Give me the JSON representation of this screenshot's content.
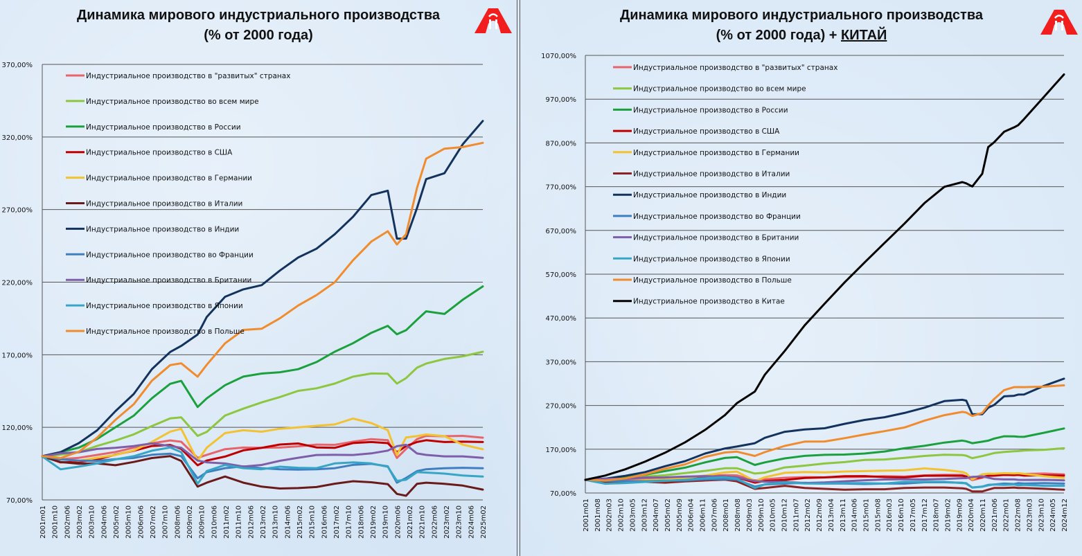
{
  "chart_data": [
    {
      "type": "line",
      "title": "Динамика мирового индустриального производства",
      "subtitle": "(% от 2000 года)",
      "subtitle_emph": "",
      "xlabel": "",
      "ylabel": "",
      "ylim": [
        70,
        370
      ],
      "yticks": [
        "370,00%",
        "320,00%",
        "270,00%",
        "220,00%",
        "170,00%",
        "120,00%",
        "70,00%"
      ],
      "ytick_values": [
        370,
        320,
        270,
        220,
        170,
        120,
        70
      ],
      "grid": true,
      "legend_position": "top-left",
      "xticks": [
        "2001m01",
        "2001m10",
        "2002m06",
        "2003m02",
        "2003m10",
        "2004m06",
        "2005m02",
        "2005m10",
        "2006m06",
        "2007m02",
        "2007m10",
        "2008m06",
        "2009m02",
        "2009m10",
        "2010m06",
        "2011m02",
        "2011m10",
        "2012m06",
        "2013m02",
        "2013m10",
        "2014m06",
        "2015m02",
        "2015m10",
        "2016m06",
        "2017m02",
        "2017m10",
        "2018m06",
        "2019m02",
        "2019m10",
        "2020m06",
        "2021m02",
        "2021m10",
        "2022m06",
        "2023m02",
        "2023m10",
        "2024m06",
        "2025m02"
      ],
      "x_years": [
        2001,
        2002,
        2003,
        2004,
        2005,
        2006,
        2007,
        2008,
        2008.6,
        2009.5,
        2010,
        2011,
        2012,
        2013,
        2014,
        2015,
        2016,
        2017,
        2018,
        2019,
        2019.9,
        2020.4,
        2020.9,
        2021.5,
        2022,
        2023,
        2024,
        2025.1
      ],
      "series": [
        {
          "name": "Индустриальное производство в \"развитых\" странах",
          "color": "#e8646b",
          "values": [
            100,
            98,
            99,
            101,
            103,
            106,
            109,
            111,
            110,
            99,
            101,
            105,
            106,
            106,
            106,
            107,
            108,
            108,
            110,
            112,
            111,
            99,
            105,
            112,
            114,
            114,
            114,
            113
          ]
        },
        {
          "name": "Индустриальное производство во всем мире",
          "color": "#8dc63f",
          "values": [
            100,
            101,
            103,
            107,
            111,
            115,
            121,
            126,
            127,
            114,
            117,
            128,
            133,
            137,
            141,
            145,
            147,
            150,
            155,
            157,
            157,
            150,
            154,
            161,
            164,
            167,
            169,
            172
          ]
        },
        {
          "name": "Индустриальное производство в России",
          "color": "#1aa03c",
          "values": [
            100,
            103,
            106,
            112,
            120,
            128,
            140,
            150,
            152,
            134,
            140,
            149,
            155,
            157,
            158,
            160,
            165,
            172,
            178,
            185,
            190,
            184,
            187,
            194,
            200,
            198,
            208,
            217
          ]
        },
        {
          "name": "Индустриальное производство в США",
          "color": "#c00000",
          "values": [
            100,
            96,
            96,
            98,
            101,
            104,
            107,
            108,
            105,
            94,
            97,
            100,
            104,
            106,
            108,
            109,
            106,
            106,
            109,
            110,
            109,
            103,
            107,
            110,
            111,
            110,
            110,
            110
          ]
        },
        {
          "name": "Индустриальное производство в Германии",
          "color": "#f2c230",
          "values": [
            100,
            98,
            97,
            99,
            101,
            104,
            110,
            117,
            119,
            97,
            106,
            116,
            118,
            117,
            119,
            120,
            121,
            122,
            126,
            123,
            118,
            101,
            113,
            114,
            115,
            114,
            108,
            105
          ]
        },
        {
          "name": "Индустриальное производство в Италии",
          "color": "#6b1a1a",
          "values": [
            100,
            96,
            95,
            95,
            94,
            96,
            99,
            100,
            97,
            79,
            82,
            86,
            82,
            79,
            78,
            78,
            79,
            81,
            83,
            82,
            81,
            74,
            73,
            81,
            82,
            81,
            80,
            77
          ]
        },
        {
          "name": "Индустриальное производство в Индии",
          "color": "#13335e",
          "values": [
            100,
            103,
            109,
            118,
            131,
            143,
            160,
            172,
            176,
            184,
            196,
            210,
            215,
            218,
            228,
            237,
            243,
            253,
            265,
            280,
            283,
            250,
            250,
            271,
            291,
            295,
            315,
            331
          ]
        },
        {
          "name": "Индустриальное производство во Франции",
          "color": "#3f7fc1",
          "values": [
            100,
            98,
            97,
            97,
            98,
            99,
            101,
            102,
            100,
            85,
            89,
            92,
            93,
            92,
            91,
            91,
            91,
            92,
            94,
            95,
            93,
            82,
            85,
            90,
            91,
            92,
            92,
            92
          ]
        },
        {
          "name": "Индустриальное производство в Британии",
          "color": "#7e5ea8",
          "values": [
            100,
            102,
            103,
            105,
            106,
            107,
            109,
            107,
            106,
            97,
            96,
            95,
            93,
            94,
            97,
            99,
            101,
            101,
            101,
            102,
            104,
            107,
            108,
            102,
            101,
            100,
            100,
            99
          ]
        },
        {
          "name": "Индустриальное производство в Японии",
          "color": "#36a5c6",
          "values": [
            100,
            91,
            93,
            95,
            98,
            100,
            104,
            106,
            103,
            81,
            90,
            94,
            92,
            91,
            93,
            92,
            92,
            95,
            96,
            95,
            93,
            83,
            84,
            89,
            89,
            88,
            87,
            86
          ]
        },
        {
          "name": "Индустриальное производство в Польше",
          "color": "#f08c2e",
          "values": [
            100,
            99,
            103,
            113,
            125,
            136,
            152,
            163,
            164,
            155,
            163,
            178,
            187,
            188,
            195,
            204,
            211,
            220,
            235,
            248,
            255,
            246,
            253,
            285,
            305,
            312,
            313,
            316
          ]
        }
      ]
    },
    {
      "type": "line",
      "title": "Динамика мирового индустриального производства",
      "subtitle": "(% от 2000 года) + ",
      "subtitle_emph": "КИТАЙ",
      "xlabel": "",
      "ylabel": "",
      "ylim": [
        70,
        1070
      ],
      "yticks": [
        "1070,00%",
        "970,00%",
        "870,00%",
        "770,00%",
        "670,00%",
        "570,00%",
        "470,00%",
        "370,00%",
        "270,00%",
        "170,00%",
        "70,00%"
      ],
      "ytick_values": [
        1070,
        970,
        870,
        770,
        670,
        570,
        470,
        370,
        270,
        170,
        70
      ],
      "grid": true,
      "legend_position": "top-left",
      "xticks": [
        "2001m01",
        "2001m08",
        "2002m03",
        "2002m10",
        "2003m05",
        "2003m12",
        "2004m07",
        "2005m02",
        "2005m09",
        "2006m04",
        "2006m11",
        "2007m06",
        "2008m01",
        "2008m08",
        "2009m03",
        "2009m10",
        "2010m05",
        "2010m12",
        "2011m07",
        "2012m02",
        "2012m09",
        "2013m04",
        "2013m11",
        "2014m06",
        "2015m01",
        "2015m08",
        "2016m03",
        "2016m10",
        "2017m05",
        "2017m12",
        "2018m07",
        "2019m02",
        "2019m09",
        "2020m04",
        "2020m11",
        "2021m06",
        "2022m01",
        "2022m08",
        "2023m03",
        "2023m10",
        "2024m05",
        "2024m12"
      ],
      "x_years": [
        2001,
        2002,
        2003,
        2004,
        2005,
        2006,
        2007,
        2008,
        2008.6,
        2009.5,
        2010,
        2011,
        2012,
        2013,
        2014,
        2015,
        2016,
        2017,
        2018,
        2019,
        2019.9,
        2020.1,
        2020.4,
        2020.9,
        2021.2,
        2021.5,
        2022,
        2022.5,
        2022.7,
        2023,
        2024,
        2025.0
      ],
      "series": [
        {
          "name": "Индустриальное производство в \"развитых\" странах",
          "color": "#e8646b",
          "values": [
            100,
            98,
            99,
            101,
            103,
            106,
            109,
            111,
            110,
            99,
            101,
            105,
            106,
            106,
            106,
            107,
            108,
            108,
            110,
            112,
            111,
            108,
            99,
            105,
            109,
            112,
            114,
            114,
            114,
            114,
            114,
            113
          ]
        },
        {
          "name": "Индустриальное производство во всем мире",
          "color": "#8dc63f",
          "values": [
            100,
            101,
            103,
            107,
            111,
            115,
            121,
            126,
            127,
            114,
            117,
            128,
            133,
            137,
            141,
            145,
            147,
            150,
            155,
            157,
            157,
            155,
            150,
            154,
            158,
            161,
            164,
            165,
            166,
            167,
            169,
            172
          ]
        },
        {
          "name": "Индустриальное производство в России",
          "color": "#1aa03c",
          "values": [
            100,
            103,
            106,
            112,
            120,
            128,
            140,
            150,
            152,
            134,
            140,
            149,
            155,
            157,
            158,
            160,
            165,
            172,
            178,
            185,
            190,
            188,
            184,
            187,
            190,
            194,
            200,
            199,
            199,
            198,
            208,
            217
          ]
        },
        {
          "name": "Индустриальное производство в США",
          "color": "#c00000",
          "values": [
            100,
            96,
            96,
            98,
            101,
            104,
            107,
            108,
            105,
            94,
            97,
            100,
            104,
            106,
            108,
            109,
            106,
            106,
            109,
            110,
            109,
            108,
            103,
            107,
            109,
            110,
            111,
            111,
            111,
            110,
            110,
            110
          ]
        },
        {
          "name": "Индустриальное производство в Германии",
          "color": "#f2c230",
          "values": [
            100,
            98,
            97,
            99,
            101,
            104,
            110,
            117,
            119,
            97,
            106,
            116,
            118,
            117,
            119,
            120,
            121,
            122,
            126,
            123,
            118,
            115,
            101,
            113,
            114,
            114,
            115,
            115,
            115,
            114,
            108,
            105
          ]
        },
        {
          "name": "Индустриальное производство в Италии",
          "color": "#8b2323",
          "values": [
            100,
            96,
            95,
            95,
            94,
            96,
            99,
            100,
            97,
            79,
            82,
            86,
            82,
            79,
            78,
            78,
            79,
            81,
            83,
            82,
            81,
            79,
            74,
            73,
            78,
            81,
            82,
            82,
            82,
            81,
            80,
            77
          ]
        },
        {
          "name": "Индустриальное производство в Индии",
          "color": "#13335e",
          "values": [
            100,
            103,
            109,
            118,
            131,
            143,
            160,
            172,
            176,
            184,
            196,
            210,
            215,
            218,
            228,
            237,
            243,
            253,
            265,
            280,
            283,
            281,
            250,
            250,
            265,
            271,
            291,
            292,
            295,
            295,
            315,
            331
          ]
        },
        {
          "name": "Индустриальное производство во Франции",
          "color": "#3f7fc1",
          "values": [
            100,
            98,
            97,
            97,
            98,
            99,
            101,
            102,
            100,
            85,
            89,
            92,
            93,
            92,
            91,
            91,
            91,
            92,
            94,
            95,
            93,
            92,
            82,
            85,
            88,
            90,
            91,
            91,
            92,
            92,
            92,
            92
          ]
        },
        {
          "name": "Индустриальное производство в Британии",
          "color": "#7e5ea8",
          "values": [
            100,
            102,
            103,
            105,
            106,
            107,
            109,
            107,
            106,
            97,
            96,
            95,
            93,
            94,
            97,
            99,
            101,
            101,
            101,
            102,
            104,
            104,
            107,
            108,
            105,
            102,
            101,
            101,
            100,
            100,
            100,
            99
          ]
        },
        {
          "name": "Индустриальное производство в Японии",
          "color": "#36a5c6",
          "values": [
            100,
            91,
            93,
            95,
            98,
            100,
            104,
            106,
            103,
            81,
            90,
            94,
            92,
            91,
            93,
            92,
            92,
            95,
            96,
            95,
            93,
            92,
            83,
            84,
            88,
            89,
            89,
            89,
            88,
            88,
            87,
            86
          ]
        },
        {
          "name": "Индустриальное производство в Польше",
          "color": "#f08c2e",
          "values": [
            100,
            99,
            103,
            113,
            125,
            136,
            152,
            163,
            164,
            155,
            163,
            178,
            187,
            188,
            195,
            204,
            211,
            220,
            235,
            248,
            255,
            254,
            246,
            253,
            270,
            285,
            305,
            312,
            312,
            312,
            313,
            316
          ]
        },
        {
          "name": "Индустриальное производство в Китае",
          "color": "#000000",
          "values": [
            100,
            110,
            124,
            142,
            162,
            186,
            214,
            248,
            275,
            302,
            340,
            395,
            453,
            503,
            551,
            597,
            641,
            686,
            732,
            770,
            780,
            778,
            770,
            800,
            860,
            872,
            895,
            906,
            910,
            925,
            975,
            1027
          ]
        }
      ]
    }
  ]
}
